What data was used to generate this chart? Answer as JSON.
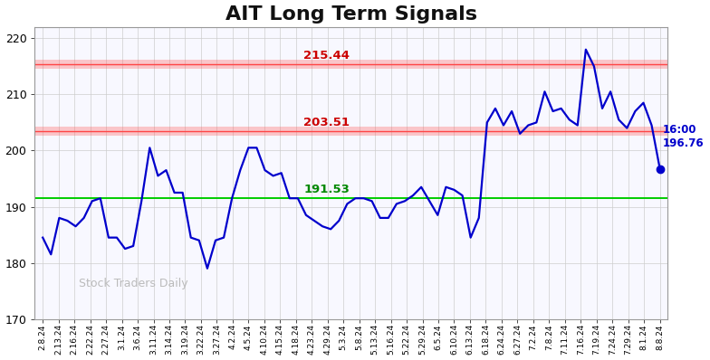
{
  "title": "AIT Long Term Signals",
  "title_fontsize": 16,
  "background_color": "#ffffff",
  "plot_bg_color": "#f8f8ff",
  "line_color": "#0000cc",
  "line_width": 1.6,
  "hline_green": 191.53,
  "hline_red1": 203.51,
  "hline_red2": 215.44,
  "hline_green_color": "#00cc00",
  "hline_red_color": "#ff6666",
  "hline_red_line_color": "#ff4444",
  "label_green_color": "#008800",
  "label_red_color": "#cc0000",
  "last_price": 196.76,
  "last_label": "16:00",
  "last_price_color": "#0000cc",
  "watermark": "Stock Traders Daily",
  "watermark_color": "#bbbbbb",
  "ylim": [
    170,
    222
  ],
  "yticks": [
    170,
    180,
    190,
    200,
    210,
    220
  ],
  "x_labels": [
    "2.8.24",
    "2.13.24",
    "2.16.24",
    "2.22.24",
    "2.27.24",
    "3.1.24",
    "3.6.24",
    "3.11.24",
    "3.14.24",
    "3.19.24",
    "3.22.24",
    "3.27.24",
    "4.2.24",
    "4.5.24",
    "4.10.24",
    "4.15.24",
    "4.18.24",
    "4.23.24",
    "4.29.24",
    "5.3.24",
    "5.8.24",
    "5.13.24",
    "5.16.24",
    "5.22.24",
    "5.29.24",
    "6.5.24",
    "6.10.24",
    "6.13.24",
    "6.18.24",
    "6.24.24",
    "6.27.24",
    "7.2.24",
    "7.8.24",
    "7.11.24",
    "7.16.24",
    "7.19.24",
    "7.24.24",
    "7.29.24",
    "8.1.24",
    "8.8.24"
  ],
  "prices": [
    184.5,
    181.5,
    188.0,
    187.5,
    186.5,
    188.0,
    191.0,
    191.5,
    184.5,
    184.5,
    182.5,
    183.0,
    191.0,
    200.5,
    195.5,
    196.5,
    192.5,
    192.5,
    184.5,
    184.0,
    179.0,
    184.0,
    184.5,
    191.5,
    196.5,
    200.5,
    200.5,
    196.5,
    195.5,
    196.0,
    191.5,
    191.5,
    188.5,
    187.5,
    186.5,
    186.0,
    187.5,
    190.5,
    191.5,
    191.5,
    191.0,
    188.0,
    188.0,
    190.5,
    191.0,
    192.0,
    193.5,
    191.0,
    188.5,
    193.5,
    193.0,
    192.0,
    184.5,
    188.0,
    205.0,
    207.5,
    204.5,
    207.0,
    203.0,
    204.5,
    205.0,
    210.5,
    207.0,
    207.5,
    205.5,
    204.5,
    218.0,
    215.0,
    207.5,
    210.5,
    205.5,
    204.0,
    207.0,
    208.5,
    204.5,
    196.76
  ]
}
